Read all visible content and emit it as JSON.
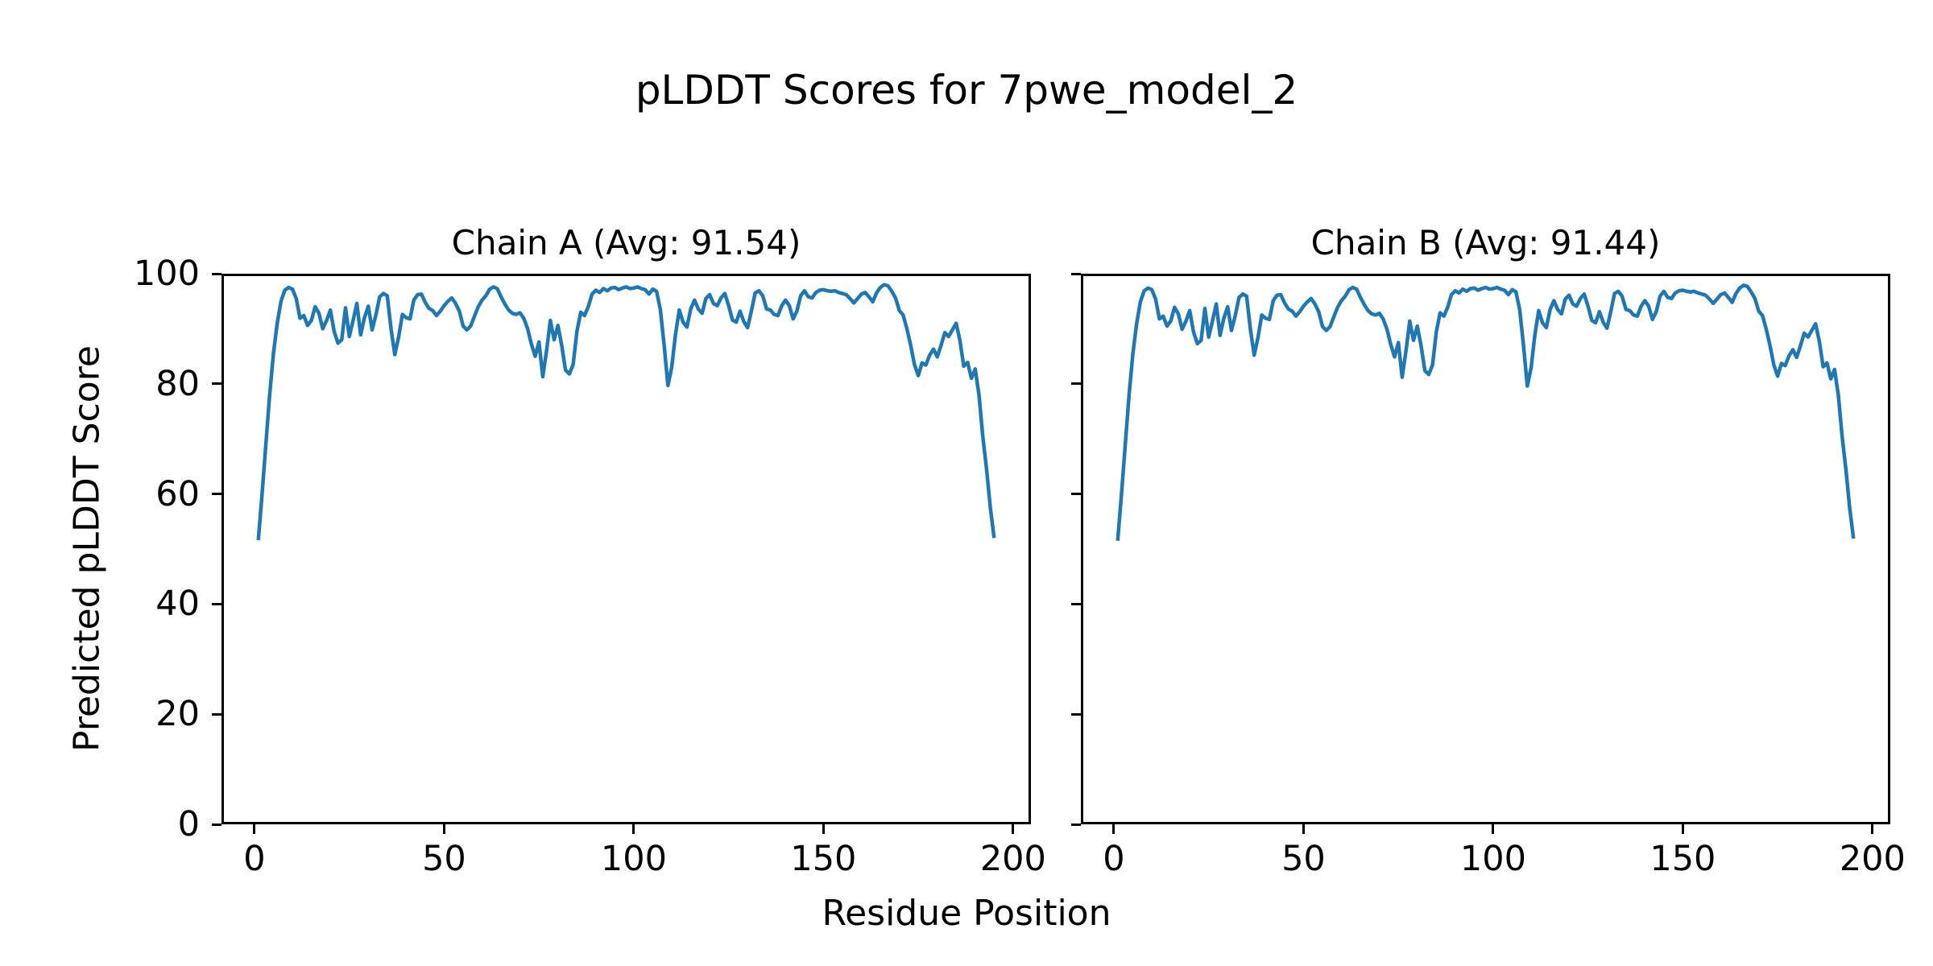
{
  "figure": {
    "title": "pLDDT Scores for 7pwe_model_2",
    "xlabel": "Residue Position",
    "ylabel": "Predicted pLDDT Score",
    "background_color": "#ffffff",
    "text_color": "#000000",
    "spine_color": "#000000"
  },
  "chart_data": [
    {
      "type": "line",
      "title": "Chain A (Avg: 91.54)",
      "chain": "A",
      "avg_plddt": 91.54,
      "xlabel": "Residue Position",
      "ylabel": "Predicted pLDDT Score",
      "line_color": "#1f77b4",
      "grid": false,
      "legend": false,
      "xlim": [
        -8.7,
        204.7
      ],
      "ylim": [
        0,
        100
      ],
      "xticks": [
        0,
        50,
        100,
        150,
        200
      ],
      "yticks": [
        0,
        20,
        40,
        60,
        80,
        100
      ],
      "x_start": 1,
      "x_step": 1,
      "y": [
        51.6,
        60,
        69,
        78,
        85.5,
        91,
        95,
        97,
        97.5,
        97.2,
        95.5,
        91.9,
        92.4,
        90.6,
        91.5,
        94,
        92.8,
        90,
        91.5,
        93.4,
        89.5,
        87.4,
        88,
        93.8,
        88.6,
        91.5,
        94.6,
        88.9,
        92,
        94.1,
        89.8,
        92.5,
        95.8,
        96.4,
        96,
        90,
        85.3,
        88.5,
        92.6,
        92,
        91.8,
        95.2,
        96.2,
        96.3,
        94.8,
        93.7,
        93.3,
        92.4,
        93.2,
        94.2,
        95,
        95.6,
        94.6,
        93.2,
        90.5,
        89.8,
        90.5,
        92.3,
        94,
        95.2,
        96,
        97.2,
        97.6,
        97.3,
        95.8,
        94.5,
        93.4,
        92.8,
        92.6,
        92.9,
        91.9,
        90,
        87.2,
        85,
        87.6,
        81.3,
        86,
        91.5,
        88,
        90.6,
        87,
        82.5,
        81.8,
        83.5,
        89.5,
        93,
        92.4,
        94,
        96.3,
        97,
        96.6,
        97.3,
        96.9,
        97.4,
        97.5,
        97.1,
        97.4,
        97.6,
        97.3,
        97.4,
        97.6,
        97.3,
        97.1,
        96.3,
        97.2,
        96.8,
        93.5,
        87,
        79.7,
        83,
        89,
        93.4,
        91.2,
        90.3,
        93.6,
        95.2,
        93.6,
        92.8,
        95.5,
        96.2,
        94.6,
        94.2,
        95.6,
        96.4,
        94.2,
        91.6,
        91.2,
        93.2,
        91.3,
        90.2,
        93.2,
        96.5,
        96.9,
        96,
        93.6,
        93.4,
        92.6,
        92.4,
        94.2,
        95.2,
        94.2,
        91.8,
        93.2,
        96,
        96.9,
        95.8,
        95.6,
        96.6,
        97,
        97.1,
        96.9,
        96.8,
        96.9,
        96.6,
        96.4,
        96.2,
        95.5,
        94.7,
        95.5,
        96.3,
        96.6,
        95.8,
        94.9,
        96.5,
        97.5,
        98,
        97.8,
        96.8,
        95.6,
        93.3,
        92.5,
        90,
        87,
        83.5,
        81.5,
        83.8,
        83.4,
        85.2,
        86.3,
        84.9,
        87,
        89.3,
        88.6,
        89.8,
        91,
        87.8,
        83.2,
        83.9,
        81,
        82.7,
        78,
        70.5,
        64.5,
        57.5,
        52
      ]
    },
    {
      "type": "line",
      "title": "Chain B (Avg: 91.44)",
      "chain": "B",
      "avg_plddt": 91.44,
      "xlabel": "Residue Position",
      "ylabel": "Predicted pLDDT Score",
      "line_color": "#1f77b4",
      "grid": false,
      "legend": false,
      "xlim": [
        -8.7,
        204.7
      ],
      "ylim": [
        0,
        100
      ],
      "xticks": [
        0,
        50,
        100,
        150,
        200
      ],
      "yticks": [
        0,
        20,
        40,
        60,
        80,
        100
      ],
      "x_start": 1,
      "x_step": 1,
      "y": [
        51.5,
        59.9,
        68.9,
        77.9,
        85.4,
        90.9,
        94.9,
        96.9,
        97.4,
        97.1,
        95.4,
        91.8,
        92.3,
        90.5,
        91.4,
        93.9,
        92.7,
        89.9,
        91.4,
        93.3,
        89.4,
        87.3,
        87.9,
        93.7,
        88.5,
        91.4,
        94.5,
        88.8,
        91.9,
        94,
        89.7,
        92.4,
        95.7,
        96.3,
        95.9,
        89.9,
        85.2,
        88.4,
        92.5,
        91.9,
        91.7,
        95.1,
        96.1,
        96.2,
        94.7,
        93.6,
        93.2,
        92.3,
        93.1,
        94.1,
        94.9,
        95.5,
        94.5,
        93.1,
        90.4,
        89.7,
        90.4,
        92.2,
        93.9,
        95.1,
        95.9,
        97.1,
        97.5,
        97.2,
        95.7,
        94.4,
        93.3,
        92.7,
        92.5,
        92.8,
        91.8,
        89.9,
        87.1,
        84.9,
        87.5,
        81.2,
        85.9,
        91.4,
        87.9,
        90.5,
        86.9,
        82.4,
        81.7,
        83.4,
        89.4,
        92.9,
        92.3,
        93.9,
        96.2,
        96.9,
        96.5,
        97.2,
        96.8,
        97.3,
        97.4,
        97,
        97.3,
        97.5,
        97.2,
        97.3,
        97.5,
        97.2,
        97,
        96.2,
        97.1,
        96.7,
        93.4,
        86.9,
        79.6,
        82.9,
        88.9,
        93.3,
        91.1,
        90.2,
        93.5,
        95.1,
        93.5,
        92.7,
        95.4,
        96.1,
        94.5,
        94.1,
        95.5,
        96.3,
        94.1,
        91.5,
        91.1,
        93.1,
        91.2,
        90.1,
        93.1,
        96.4,
        96.8,
        95.9,
        93.5,
        93.3,
        92.5,
        92.3,
        94.1,
        95.1,
        94.1,
        91.7,
        93.1,
        95.9,
        96.8,
        95.7,
        95.5,
        96.5,
        96.9,
        97,
        96.8,
        96.7,
        96.8,
        96.5,
        96.3,
        96.1,
        95.4,
        94.6,
        95.4,
        96.2,
        96.5,
        95.7,
        94.8,
        96.4,
        97.4,
        97.9,
        97.7,
        96.7,
        95.5,
        93.2,
        92.4,
        89.9,
        86.9,
        83.4,
        81.4,
        83.7,
        83.3,
        85.1,
        86.2,
        84.8,
        86.9,
        89.2,
        88.5,
        89.7,
        90.9,
        87.7,
        83.1,
        83.8,
        80.9,
        82.6,
        77.9,
        70.4,
        64.4,
        57.4,
        51.9
      ]
    }
  ]
}
